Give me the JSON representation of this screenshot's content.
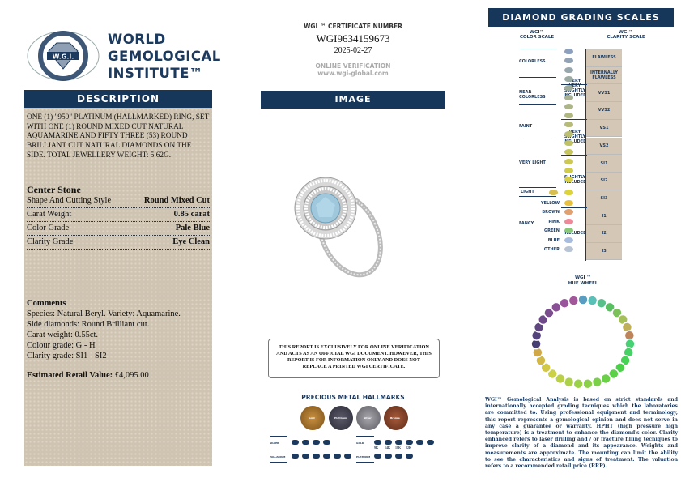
{
  "logo": {
    "lines": [
      "WORLD",
      "GEMOLOGICAL",
      "INSTITUTE™"
    ],
    "emblem_text": "W.G.I.",
    "ring_text": "WORLD GEMOLOGICAL INSTITUTE"
  },
  "description": {
    "header": "DESCRIPTION",
    "text": "ONE (1) \"950\" PLATINUM (HALLMARKED) RING, SET WITH ONE (1) ROUND MIXED CUT NATURAL AQUAMARINE AND FIFTY THREE (53) ROUND BRILLIANT CUT NATURAL DIAMONDS ON THE SIDE. TOTAL JEWELLERY WEIGHT: 5.62g.",
    "center_stone_title": "Center Stone",
    "rows": [
      {
        "label": "Shape And Cutting Style",
        "value": "Round Mixed Cut"
      },
      {
        "label": "Carat Weight",
        "value": "0.85 carat"
      },
      {
        "label": "Color Grade",
        "value": "Pale Blue"
      },
      {
        "label": "Clarity Grade",
        "value": "Eye Clean"
      }
    ],
    "comments_title": "Comments",
    "comments": [
      "Species: Natural Beryl. Variety: Aquamarine.",
      "Side diamonds: Round Brilliant cut.",
      "Carat weight: 0.55ct.",
      "Colour grade: G - H",
      "Clarity grade: SI1 - SI2"
    ],
    "erv_label": "Estimated Retail Value:",
    "erv_value": "£4,095.00"
  },
  "certificate": {
    "label": "WGI ™ CERTIFICATE NUMBER",
    "number": "WGI9634159673",
    "date": "2025-02-27",
    "verify_label": "ONLINE VERIFICATION",
    "url": "www.wgi-global.com"
  },
  "image": {
    "header": "IMAGE"
  },
  "notice": "THIS REPORT IS EXCLUSIVELY FOR ONLINE VERIFICATION AND ACTS AS AN OFFICIAL WGI DOCUMENT. HOWEVER, THIS REPORT IS FOR INFORMATION ONLY AND DOES NOT REPLACE A PRINTED WGI CERTIFICATE.",
  "hallmarks": {
    "title": "PRECIOUS METAL HALLMARKS",
    "coins": [
      {
        "label": "Gold",
        "color": "#b07a2a"
      },
      {
        "label": "Platinum",
        "color": "#4a4a58"
      },
      {
        "label": "Silver",
        "color": "#8a8a90"
      },
      {
        "label": "Bronze",
        "color": "#8a4a30"
      }
    ],
    "silver_label": "SILVER",
    "silver_marks": [
      "800",
      "925",
      "958",
      "999"
    ],
    "palladium_label": "PALLADIUM",
    "gold_label": "GOLD",
    "gold_marks": [
      "375",
      "585",
      "750",
      "916",
      "990",
      "999"
    ],
    "gold_karats": [
      "9K",
      "14K",
      "18K",
      "22K"
    ],
    "platinum_label": "PLATINUM"
  },
  "scales": {
    "header": "DIAMOND GRADING SCALES",
    "color_title": [
      "WGI™",
      "COLOR SCALE"
    ],
    "clarity_title": [
      "WGI™",
      "CLARITY SCALE"
    ],
    "color_groups": [
      "COLORLESS",
      "NEAR COLORLESS",
      "FAINT",
      "VERY LIGHT",
      "LIGHT",
      "FANCY"
    ],
    "color_letters": [
      "D",
      "E",
      "F",
      "G",
      "H",
      "I",
      "J",
      "K",
      "L",
      "M",
      "N",
      "O",
      "P",
      "Q",
      "R",
      "S",
      "Z"
    ],
    "fancy": [
      {
        "label": "YELLOW",
        "color": "#e8c040"
      },
      {
        "label": "BROWN",
        "color": "#e0a070"
      },
      {
        "label": "PINK",
        "color": "#ec8a9a"
      },
      {
        "label": "GREEN",
        "color": "#88c878"
      },
      {
        "label": "BLUE",
        "color": "#a8bce0"
      },
      {
        "label": "OTHER",
        "color": "#b8c4d4"
      }
    ],
    "clarity_groups": [
      "VERY VERY SLIGHTLY INCLUDED",
      "VERY SLIGHTLY INCLUDED",
      "SLIGHTLY INCLUDED",
      "INCLUDED"
    ],
    "clarity_grades": [
      "FLAWLESS",
      "INTERNALLY FLAWLESS",
      "VVS1",
      "VVS2",
      "VS1",
      "VS2",
      "SI1",
      "SI2",
      "SI3",
      "I1",
      "I2",
      "I3"
    ]
  },
  "hue_wheel": {
    "title": [
      "WGI ™",
      "HUE WHEEL"
    ]
  },
  "disclaimer": "WGI™ Gemological Analysis is based on strict standards and internationally accepted grading tecniques which the laboratories are committed to. Using professional equipment and terminology, this report represents a gemological opinion and does not serve in any case a guarantee or warranty. HPHT (high pressure high temperature) is a treatment to enhance the diamond's color. Clarity enhanced refers to laser drilling and / or fracture filling tecniques to improve clarity of a diamond and its appearance. Weights and measurements are approximate. The mounting can limit the ability to see the characteristics and signs of treatment. The valuation refers to a recommended retail price (RRP)."
}
